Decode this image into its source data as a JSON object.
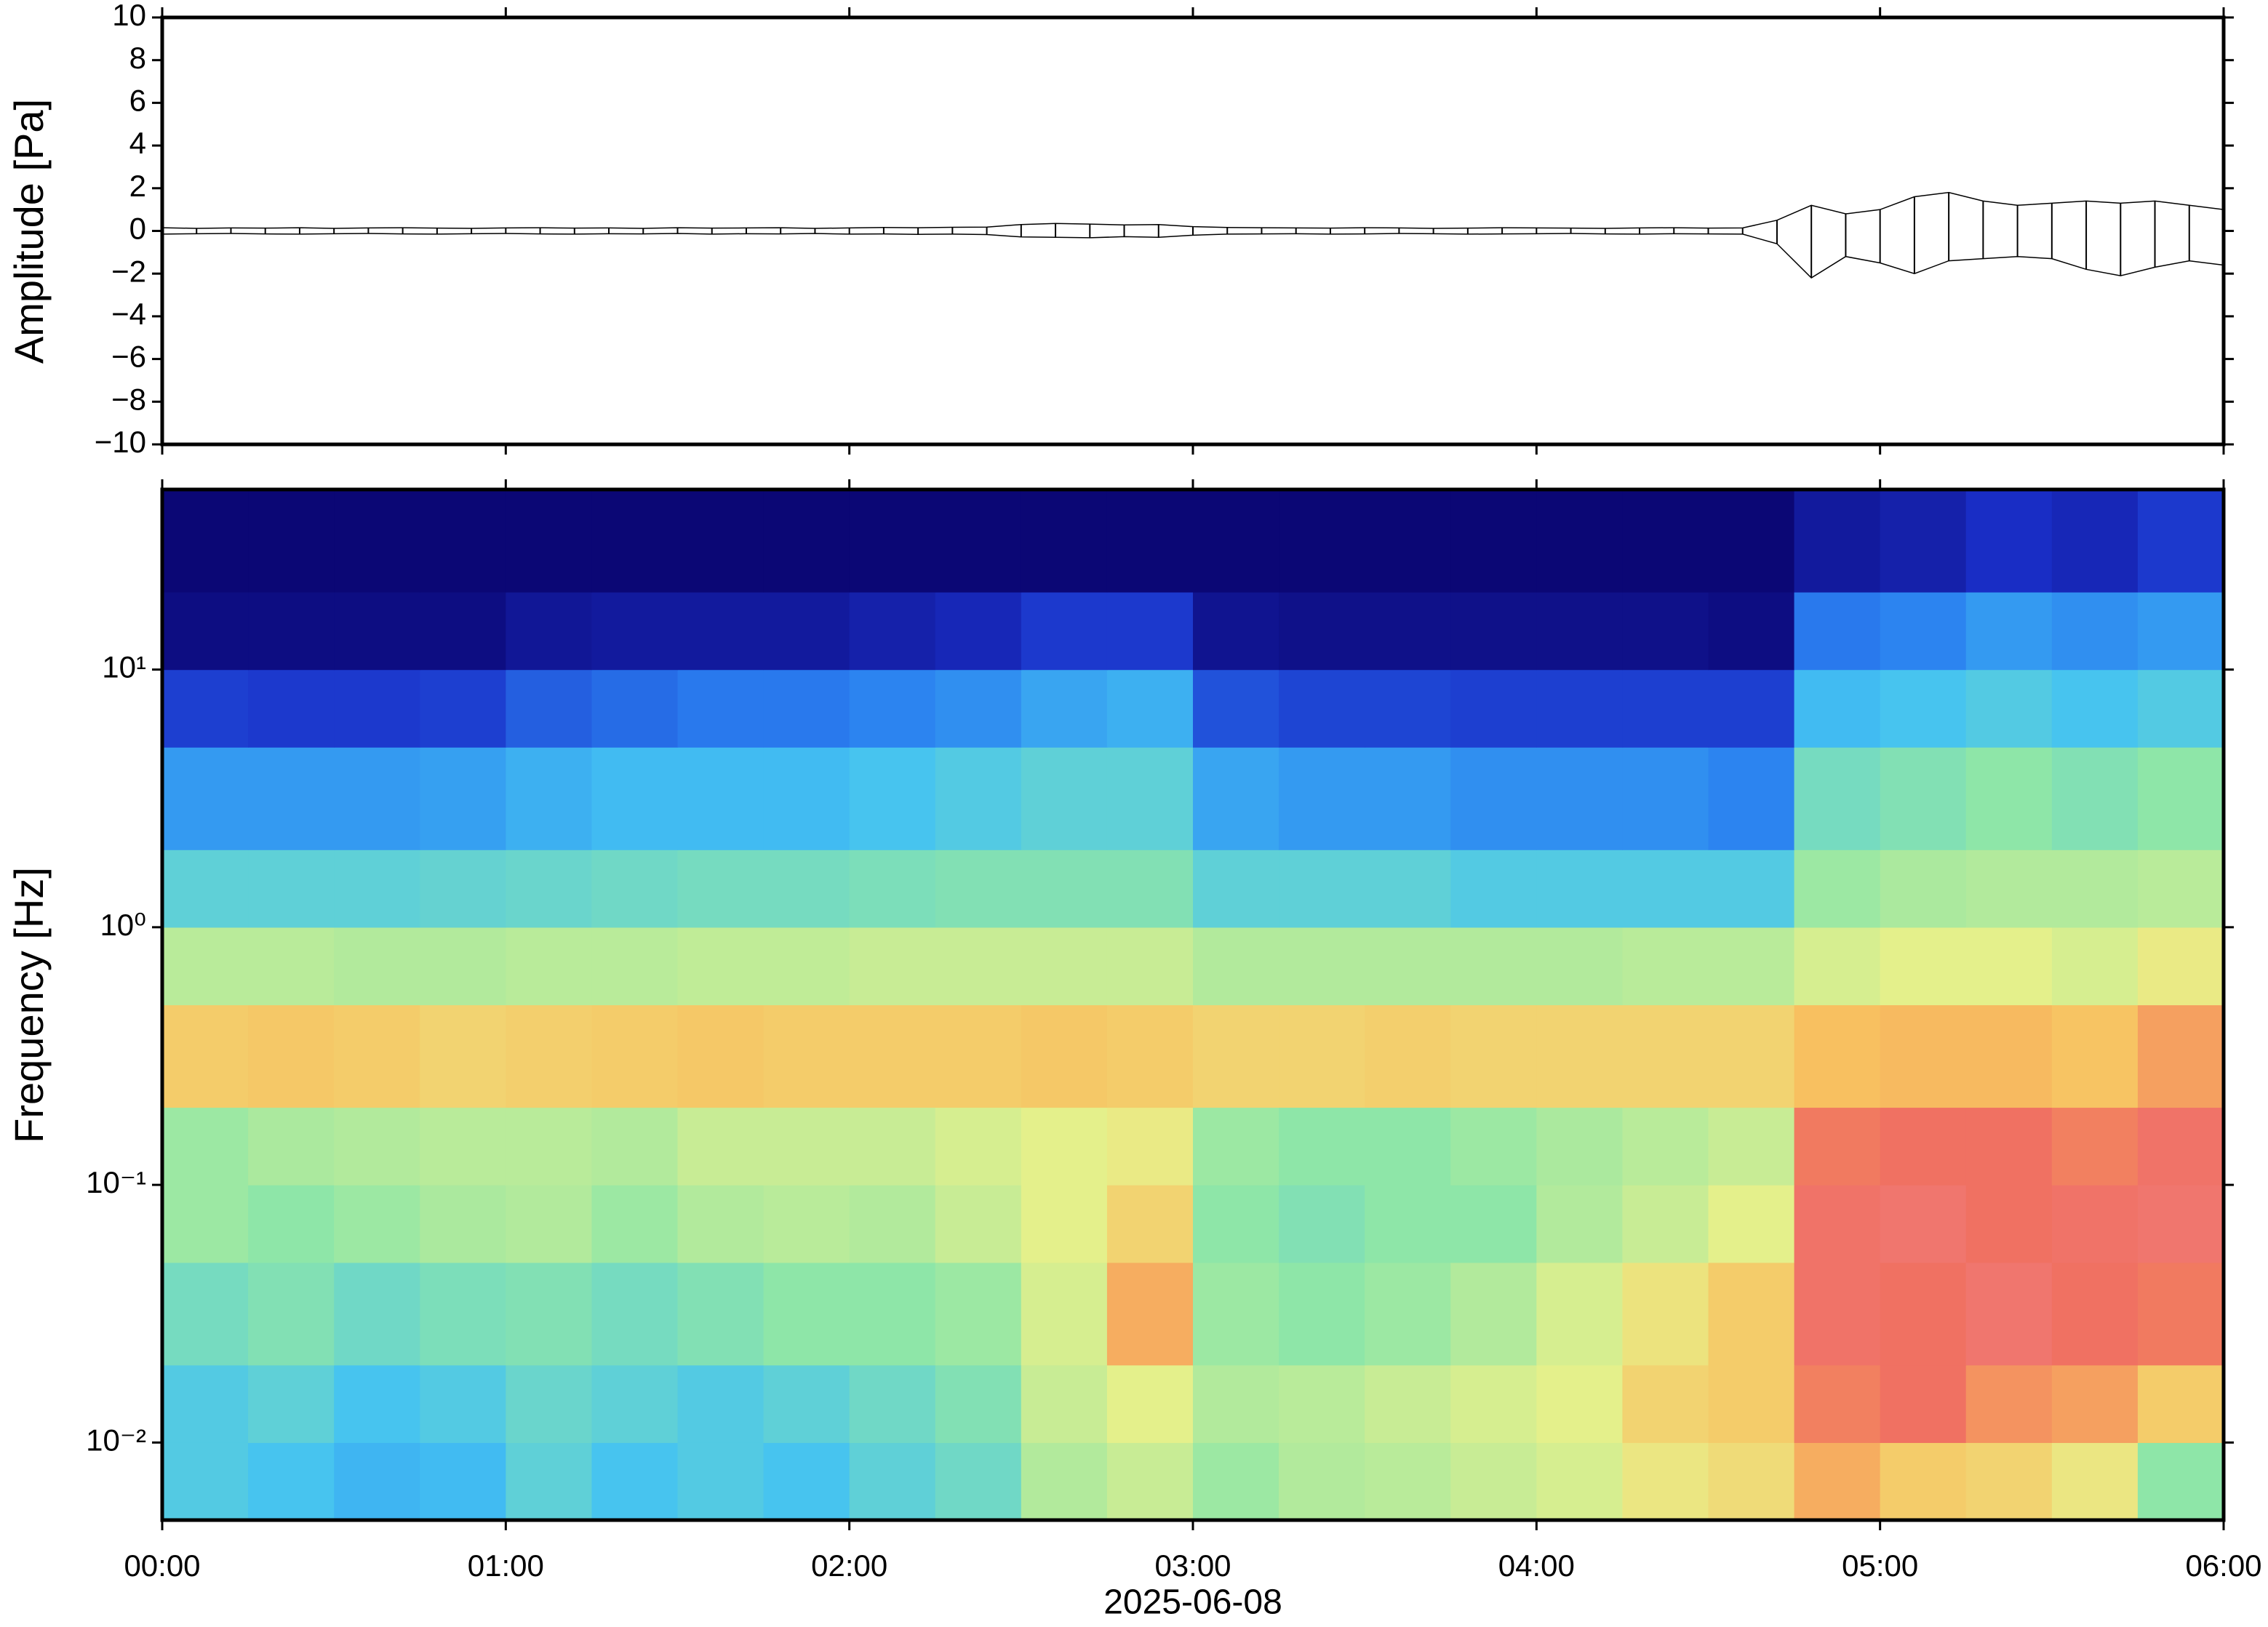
{
  "chart_data": [
    {
      "type": "line",
      "ylabel": "Amplitude [Pa]",
      "color": "#000000",
      "xlim": [
        0,
        6
      ],
      "xticks": [
        0,
        1,
        2,
        3,
        4,
        5,
        6
      ],
      "ylim": [
        -10,
        10
      ],
      "yticks": [
        {
          "value": -10,
          "label": "−10"
        },
        {
          "value": -8,
          "label": "−8"
        },
        {
          "value": -6,
          "label": "−6"
        },
        {
          "value": -4,
          "label": "−4"
        },
        {
          "value": -2,
          "label": "−2"
        },
        0,
        2,
        4,
        6,
        8,
        10
      ],
      "x": [
        0,
        0.1,
        0.2,
        0.3,
        0.4,
        0.5,
        0.6,
        0.7,
        0.8,
        0.9,
        1,
        1.1,
        1.2,
        1.3,
        1.4,
        1.5,
        1.6,
        1.7,
        1.8,
        1.9,
        2,
        2.1,
        2.2,
        2.3,
        2.4,
        2.5,
        2.6,
        2.7,
        2.8,
        2.9,
        3,
        3.1,
        3.2,
        3.3,
        3.4,
        3.5,
        3.6,
        3.7,
        3.8,
        3.9,
        4,
        4.1,
        4.2,
        4.3,
        4.4,
        4.5,
        4.6,
        4.7,
        4.8,
        4.9,
        5,
        5.1,
        5.2,
        5.3,
        5.4,
        5.5,
        5.6,
        5.7,
        5.8,
        5.9,
        6
      ],
      "series": [
        {
          "values": [
            0.15,
            0.12,
            0.14,
            0.13,
            0.15,
            0.12,
            0.14,
            0.15,
            0.13,
            0.12,
            0.14,
            0.15,
            0.13,
            0.14,
            0.12,
            0.15,
            0.13,
            0.14,
            0.15,
            0.12,
            0.14,
            0.16,
            0.15,
            0.17,
            0.18,
            0.3,
            0.35,
            0.32,
            0.28,
            0.3,
            0.2,
            0.16,
            0.15,
            0.14,
            0.13,
            0.15,
            0.14,
            0.12,
            0.13,
            0.15,
            0.14,
            0.13,
            0.12,
            0.14,
            0.15,
            0.13,
            0.14,
            0.5,
            1.2,
            0.8,
            1.0,
            1.6,
            1.8,
            1.4,
            1.2,
            1.3,
            1.4,
            1.3,
            1.4,
            1.2,
            1.0
          ]
        },
        {
          "values": [
            -0.15,
            -0.13,
            -0.12,
            -0.14,
            -0.15,
            -0.13,
            -0.12,
            -0.14,
            -0.15,
            -0.13,
            -0.12,
            -0.14,
            -0.15,
            -0.13,
            -0.14,
            -0.12,
            -0.15,
            -0.13,
            -0.14,
            -0.12,
            -0.15,
            -0.14,
            -0.16,
            -0.15,
            -0.17,
            -0.28,
            -0.3,
            -0.32,
            -0.27,
            -0.3,
            -0.2,
            -0.15,
            -0.14,
            -0.13,
            -0.15,
            -0.14,
            -0.12,
            -0.13,
            -0.15,
            -0.14,
            -0.13,
            -0.12,
            -0.14,
            -0.15,
            -0.13,
            -0.14,
            -0.15,
            -0.6,
            -2.2,
            -1.2,
            -1.5,
            -2.0,
            -1.4,
            -1.3,
            -1.2,
            -1.3,
            -1.8,
            -2.1,
            -1.7,
            -1.4,
            -1.6
          ]
        }
      ]
    },
    {
      "type": "heatmap",
      "ylabel": "Frequency [Hz]",
      "xlabel": "2025-06-08",
      "log_y": true,
      "xlim": [
        0,
        6
      ],
      "ylim": [
        0.005,
        50
      ],
      "xticks": [
        {
          "value": 0,
          "label": "00:00"
        },
        {
          "value": 1,
          "label": "01:00"
        },
        {
          "value": 2,
          "label": "02:00"
        },
        {
          "value": 3,
          "label": "03:00"
        },
        {
          "value": 4,
          "label": "04:00"
        },
        {
          "value": 5,
          "label": "05:00"
        },
        {
          "value": 6,
          "label": "06:00"
        }
      ],
      "yticks": [
        {
          "value": 0.01,
          "label": "10⁻²"
        },
        {
          "value": 0.1,
          "label": "10⁻¹"
        },
        {
          "value": 1,
          "label": "10⁰"
        },
        {
          "value": 10,
          "label": "10¹"
        }
      ],
      "xbins": [
        0,
        0.25,
        0.5,
        0.75,
        1,
        1.25,
        1.5,
        1.75,
        2,
        2.25,
        2.5,
        2.75,
        3,
        3.25,
        3.5,
        3.75,
        4,
        4.25,
        4.5,
        4.75,
        5,
        5.25,
        5.5,
        5.75,
        6
      ],
      "ybins": [
        0.005,
        0.01,
        0.02,
        0.05,
        0.1,
        0.2,
        0.5,
        1,
        2,
        5,
        10,
        20,
        50
      ],
      "zlim": [
        0,
        100
      ],
      "colorscale": [
        "#0b0775",
        "#1a2fc8",
        "#2a7ff0",
        "#44c3f2",
        "#8ee6a8",
        "#e8f08a",
        "#f8c060",
        "#f07060",
        "#f08088"
      ],
      "z": [
        [
          40,
          38,
          35,
          36,
          42,
          38,
          40,
          38,
          42,
          45,
          55,
          58,
          52,
          55,
          56,
          58,
          60,
          65,
          68,
          78,
          72,
          70,
          65,
          50
        ],
        [
          40,
          42,
          38,
          40,
          44,
          42,
          40,
          42,
          45,
          48,
          58,
          62,
          55,
          56,
          58,
          60,
          62,
          70,
          72,
          85,
          88,
          82,
          80,
          72
        ],
        [
          46,
          48,
          45,
          47,
          48,
          46,
          48,
          50,
          50,
          52,
          60,
          78,
          52,
          50,
          52,
          55,
          60,
          66,
          72,
          90,
          88,
          92,
          88,
          86
        ],
        [
          52,
          50,
          52,
          54,
          55,
          52,
          55,
          56,
          55,
          58,
          62,
          70,
          50,
          48,
          50,
          50,
          55,
          58,
          62,
          90,
          92,
          88,
          90,
          92
        ],
        [
          52,
          54,
          55,
          56,
          56,
          55,
          58,
          58,
          58,
          60,
          62,
          64,
          52,
          50,
          50,
          52,
          54,
          56,
          58,
          86,
          88,
          88,
          85,
          90
        ],
        [
          72,
          73,
          72,
          70,
          71,
          72,
          73,
          72,
          72,
          72,
          73,
          72,
          70,
          70,
          71,
          70,
          70,
          70,
          70,
          75,
          76,
          76,
          74,
          80
        ],
        [
          56,
          56,
          55,
          55,
          56,
          56,
          57,
          57,
          58,
          58,
          58,
          58,
          55,
          55,
          55,
          55,
          55,
          56,
          56,
          60,
          62,
          62,
          60,
          64
        ],
        [
          42,
          42,
          42,
          43,
          44,
          45,
          46,
          46,
          47,
          48,
          48,
          48,
          42,
          42,
          42,
          40,
          40,
          40,
          40,
          52,
          54,
          55,
          55,
          56
        ],
        [
          30,
          30,
          30,
          31,
          34,
          36,
          36,
          36,
          38,
          40,
          42,
          42,
          32,
          30,
          30,
          28,
          28,
          28,
          26,
          46,
          48,
          50,
          48,
          50
        ],
        [
          15,
          14,
          14,
          15,
          20,
          22,
          24,
          24,
          26,
          28,
          32,
          34,
          18,
          16,
          16,
          15,
          15,
          15,
          15,
          36,
          38,
          40,
          38,
          40
        ],
        [
          2,
          2,
          2,
          2,
          5,
          6,
          6,
          6,
          8,
          10,
          14,
          14,
          4,
          3,
          3,
          3,
          3,
          3,
          2,
          24,
          26,
          30,
          28,
          30
        ],
        [
          0,
          0,
          0,
          0,
          0,
          0,
          0,
          0,
          0,
          0,
          0,
          0,
          0,
          0,
          0,
          0,
          0,
          0,
          0,
          6,
          8,
          12,
          10,
          14
        ]
      ]
    }
  ]
}
